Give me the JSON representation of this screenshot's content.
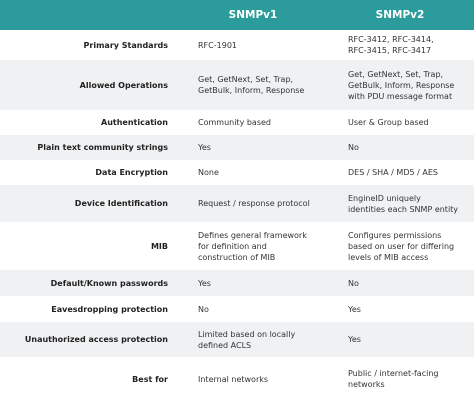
{
  "header": {
    "col1": "SNMPv1",
    "col2": "SNMPv2"
  },
  "rows": [
    {
      "label": "Primary Standards",
      "v1": [
        "RFC-1901"
      ],
      "v2": [
        "RFC-3412, RFC-3414,",
        "RFC-3415, RFC-3417"
      ]
    },
    {
      "label": "Allowed Operations",
      "v1": [
        "Get, GetNext, Set, Trap,",
        "GetBulk, Inform, Response"
      ],
      "v2": [
        "Get, GetNext, Set, Trap,",
        "GetBulk, Inform, Response",
        "with PDU message format"
      ]
    },
    {
      "label": "Authentication",
      "v1": [
        "Community based"
      ],
      "v2": [
        "User & Group based"
      ]
    },
    {
      "label": "Plain text community strings",
      "v1": [
        "Yes"
      ],
      "v2": [
        "No"
      ]
    },
    {
      "label": "Data Encryption",
      "v1": [
        "None"
      ],
      "v2": [
        "DES / SHA / MD5 / AES"
      ]
    },
    {
      "label": "Device Identification",
      "v1": [
        "Request / response protocol"
      ],
      "v2": [
        "EngineID uniquely",
        "identities each SNMP entity"
      ]
    },
    {
      "label": "MIB",
      "v1": [
        "Defines general framework",
        "for definition and",
        "construction of MIB"
      ],
      "v2": [
        "Configures permissions",
        "based on user for differing",
        "levels of MIB access"
      ]
    },
    {
      "label": "Default/Known passwords",
      "v1": [
        "Yes"
      ],
      "v2": [
        "No"
      ]
    },
    {
      "label": "Eavesdropping protection",
      "v1": [
        "No"
      ],
      "v2": [
        "Yes"
      ]
    },
    {
      "label": "Unauthorized access protection",
      "v1": [
        "Limited based on locally",
        "defined ACLS"
      ],
      "v2": [
        "Yes"
      ]
    },
    {
      "label": "Best for",
      "v1": [
        "Internal networks"
      ],
      "v2": [
        "Public / internet-facing",
        "networks"
      ]
    }
  ]
}
